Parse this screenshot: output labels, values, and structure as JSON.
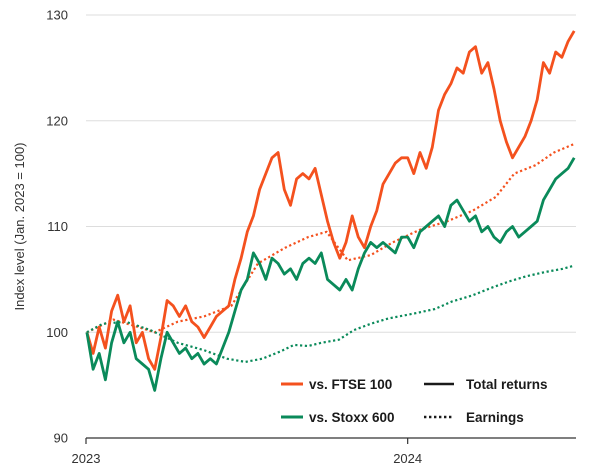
{
  "chart_data": {
    "type": "line",
    "title": "",
    "ylabel": "Index level (Jan. 2023 = 100)",
    "xlabel": "",
    "ylim": [
      90,
      130
    ],
    "yticks": [
      90,
      100,
      110,
      120,
      130
    ],
    "xlim": [
      "2023-01-01",
      "2024-07-10"
    ],
    "xticks": [
      {
        "date": "2023-01-01",
        "label": "2023"
      },
      {
        "date": "2024-01-01",
        "label": "2024"
      }
    ],
    "grid": "horizontal",
    "colors": {
      "ftse": "#f4511e",
      "stoxx": "#0a8a5a",
      "axis": "#333333",
      "grid": "#dddddd"
    },
    "legend": {
      "placement": "bottom-right",
      "series_entries": [
        {
          "label": "vs. FTSE 100",
          "color": "#f4511e"
        },
        {
          "label": "vs. Stoxx 600",
          "color": "#0a8a5a"
        }
      ],
      "style_entries": [
        {
          "label": "Total returns",
          "style": "solid"
        },
        {
          "label": "Earnings",
          "style": "dotted"
        }
      ]
    },
    "series": [
      {
        "key": "ftse_total",
        "color": "#f4511e",
        "style": "solid",
        "points": [
          [
            "2023-01-02",
            100.0
          ],
          [
            "2023-01-09",
            98.0
          ],
          [
            "2023-01-16",
            100.5
          ],
          [
            "2023-01-23",
            98.5
          ],
          [
            "2023-01-30",
            102.0
          ],
          [
            "2023-02-06",
            103.5
          ],
          [
            "2023-02-13",
            101.0
          ],
          [
            "2023-02-20",
            102.5
          ],
          [
            "2023-02-27",
            99.0
          ],
          [
            "2023-03-06",
            100.0
          ],
          [
            "2023-03-13",
            97.5
          ],
          [
            "2023-03-20",
            96.5
          ],
          [
            "2023-03-27",
            99.5
          ],
          [
            "2023-04-03",
            103.0
          ],
          [
            "2023-04-10",
            102.5
          ],
          [
            "2023-04-17",
            101.5
          ],
          [
            "2023-04-24",
            102.5
          ],
          [
            "2023-05-01",
            101.0
          ],
          [
            "2023-05-08",
            100.5
          ],
          [
            "2023-05-15",
            99.5
          ],
          [
            "2023-05-22",
            100.5
          ],
          [
            "2023-05-29",
            101.5
          ],
          [
            "2023-06-05",
            102.0
          ],
          [
            "2023-06-12",
            102.5
          ],
          [
            "2023-06-19",
            105.0
          ],
          [
            "2023-06-26",
            107.0
          ],
          [
            "2023-07-03",
            109.5
          ],
          [
            "2023-07-10",
            111.0
          ],
          [
            "2023-07-17",
            113.5
          ],
          [
            "2023-07-24",
            115.0
          ],
          [
            "2023-07-31",
            116.5
          ],
          [
            "2023-08-07",
            117.0
          ],
          [
            "2023-08-14",
            113.5
          ],
          [
            "2023-08-21",
            112.0
          ],
          [
            "2023-08-28",
            114.5
          ],
          [
            "2023-09-04",
            115.0
          ],
          [
            "2023-09-11",
            114.5
          ],
          [
            "2023-09-18",
            115.5
          ],
          [
            "2023-09-25",
            113.0
          ],
          [
            "2023-10-02",
            110.5
          ],
          [
            "2023-10-09",
            108.5
          ],
          [
            "2023-10-16",
            107.0
          ],
          [
            "2023-10-23",
            108.5
          ],
          [
            "2023-10-30",
            111.0
          ],
          [
            "2023-11-06",
            109.0
          ],
          [
            "2023-11-13",
            108.0
          ],
          [
            "2023-11-20",
            110.0
          ],
          [
            "2023-11-27",
            111.5
          ],
          [
            "2023-12-04",
            114.0
          ],
          [
            "2023-12-11",
            115.0
          ],
          [
            "2023-12-18",
            116.0
          ],
          [
            "2023-12-25",
            116.5
          ],
          [
            "2024-01-01",
            116.5
          ],
          [
            "2024-01-08",
            115.0
          ],
          [
            "2024-01-15",
            117.0
          ],
          [
            "2024-01-22",
            115.5
          ],
          [
            "2024-01-29",
            117.5
          ],
          [
            "2024-02-05",
            121.0
          ],
          [
            "2024-02-12",
            122.5
          ],
          [
            "2024-02-19",
            123.5
          ],
          [
            "2024-02-26",
            125.0
          ],
          [
            "2024-03-04",
            124.5
          ],
          [
            "2024-03-11",
            126.5
          ],
          [
            "2024-03-18",
            127.0
          ],
          [
            "2024-03-25",
            124.5
          ],
          [
            "2024-04-01",
            125.5
          ],
          [
            "2024-04-08",
            123.0
          ],
          [
            "2024-04-15",
            120.0
          ],
          [
            "2024-04-22",
            118.0
          ],
          [
            "2024-04-29",
            116.5
          ],
          [
            "2024-05-06",
            117.5
          ],
          [
            "2024-05-13",
            118.5
          ],
          [
            "2024-05-20",
            120.0
          ],
          [
            "2024-05-27",
            122.0
          ],
          [
            "2024-06-03",
            125.5
          ],
          [
            "2024-06-10",
            124.5
          ],
          [
            "2024-06-17",
            126.5
          ],
          [
            "2024-06-24",
            126.0
          ],
          [
            "2024-07-01",
            127.5
          ],
          [
            "2024-07-08",
            128.5
          ]
        ]
      },
      {
        "key": "ftse_earnings",
        "color": "#f4511e",
        "style": "dotted",
        "points": [
          [
            "2023-01-02",
            100.0
          ],
          [
            "2023-02-01",
            101.2
          ],
          [
            "2023-03-01",
            100.5
          ],
          [
            "2023-03-20",
            100.0
          ],
          [
            "2023-04-15",
            101.0
          ],
          [
            "2023-05-15",
            101.5
          ],
          [
            "2023-06-15",
            102.5
          ],
          [
            "2023-07-15",
            106.5
          ],
          [
            "2023-08-15",
            108.0
          ],
          [
            "2023-09-10",
            109.0
          ],
          [
            "2023-10-01",
            109.5
          ],
          [
            "2023-10-25",
            106.8
          ],
          [
            "2023-11-20",
            107.3
          ],
          [
            "2023-12-15",
            108.5
          ],
          [
            "2024-01-15",
            109.7
          ],
          [
            "2024-02-15",
            110.5
          ],
          [
            "2024-03-15",
            111.5
          ],
          [
            "2024-04-10",
            112.8
          ],
          [
            "2024-05-01",
            115.0
          ],
          [
            "2024-05-25",
            115.8
          ],
          [
            "2024-06-15",
            117.0
          ],
          [
            "2024-07-08",
            117.8
          ]
        ]
      },
      {
        "key": "stoxx_total",
        "color": "#0a8a5a",
        "style": "solid",
        "points": [
          [
            "2023-01-02",
            100.0
          ],
          [
            "2023-01-09",
            96.5
          ],
          [
            "2023-01-16",
            98.0
          ],
          [
            "2023-01-23",
            95.5
          ],
          [
            "2023-01-30",
            99.0
          ],
          [
            "2023-02-06",
            101.0
          ],
          [
            "2023-02-13",
            99.0
          ],
          [
            "2023-02-20",
            100.0
          ],
          [
            "2023-02-27",
            97.5
          ],
          [
            "2023-03-06",
            97.0
          ],
          [
            "2023-03-13",
            96.5
          ],
          [
            "2023-03-20",
            94.5
          ],
          [
            "2023-03-27",
            97.5
          ],
          [
            "2023-04-03",
            100.0
          ],
          [
            "2023-04-10",
            99.0
          ],
          [
            "2023-04-17",
            98.0
          ],
          [
            "2023-04-24",
            98.5
          ],
          [
            "2023-05-01",
            97.5
          ],
          [
            "2023-05-08",
            98.0
          ],
          [
            "2023-05-15",
            97.0
          ],
          [
            "2023-05-22",
            97.5
          ],
          [
            "2023-05-29",
            97.0
          ],
          [
            "2023-06-05",
            98.5
          ],
          [
            "2023-06-12",
            100.0
          ],
          [
            "2023-06-19",
            102.0
          ],
          [
            "2023-06-26",
            104.0
          ],
          [
            "2023-07-03",
            105.0
          ],
          [
            "2023-07-10",
            107.5
          ],
          [
            "2023-07-17",
            106.5
          ],
          [
            "2023-07-24",
            105.0
          ],
          [
            "2023-07-31",
            107.0
          ],
          [
            "2023-08-07",
            106.5
          ],
          [
            "2023-08-14",
            105.5
          ],
          [
            "2023-08-21",
            106.0
          ],
          [
            "2023-08-28",
            105.0
          ],
          [
            "2023-09-04",
            106.5
          ],
          [
            "2023-09-11",
            107.0
          ],
          [
            "2023-09-18",
            106.5
          ],
          [
            "2023-09-25",
            107.5
          ],
          [
            "2023-10-02",
            105.0
          ],
          [
            "2023-10-09",
            104.5
          ],
          [
            "2023-10-16",
            104.0
          ],
          [
            "2023-10-23",
            105.0
          ],
          [
            "2023-10-30",
            104.0
          ],
          [
            "2023-11-06",
            106.0
          ],
          [
            "2023-11-13",
            107.5
          ],
          [
            "2023-11-20",
            108.5
          ],
          [
            "2023-11-27",
            108.0
          ],
          [
            "2023-12-04",
            108.5
          ],
          [
            "2023-12-11",
            108.0
          ],
          [
            "2023-12-18",
            107.5
          ],
          [
            "2023-12-25",
            109.0
          ],
          [
            "2024-01-01",
            109.0
          ],
          [
            "2024-01-08",
            108.0
          ],
          [
            "2024-01-15",
            109.5
          ],
          [
            "2024-01-22",
            110.0
          ],
          [
            "2024-01-29",
            110.5
          ],
          [
            "2024-02-05",
            111.0
          ],
          [
            "2024-02-12",
            110.0
          ],
          [
            "2024-02-19",
            112.0
          ],
          [
            "2024-02-26",
            112.5
          ],
          [
            "2024-03-04",
            111.5
          ],
          [
            "2024-03-11",
            110.5
          ],
          [
            "2024-03-18",
            111.0
          ],
          [
            "2024-03-25",
            109.5
          ],
          [
            "2024-04-01",
            110.0
          ],
          [
            "2024-04-08",
            109.0
          ],
          [
            "2024-04-15",
            108.5
          ],
          [
            "2024-04-22",
            109.5
          ],
          [
            "2024-04-29",
            110.0
          ],
          [
            "2024-05-06",
            109.0
          ],
          [
            "2024-05-13",
            109.5
          ],
          [
            "2024-05-20",
            110.0
          ],
          [
            "2024-05-27",
            110.5
          ],
          [
            "2024-06-03",
            112.5
          ],
          [
            "2024-06-10",
            113.5
          ],
          [
            "2024-06-17",
            114.5
          ],
          [
            "2024-06-24",
            115.0
          ],
          [
            "2024-07-01",
            115.5
          ],
          [
            "2024-07-08",
            116.5
          ]
        ]
      },
      {
        "key": "stoxx_earnings",
        "color": "#0a8a5a",
        "style": "dotted",
        "points": [
          [
            "2023-01-02",
            100.0
          ],
          [
            "2023-01-20",
            100.8
          ],
          [
            "2023-02-15",
            101.0
          ],
          [
            "2023-03-15",
            100.2
          ],
          [
            "2023-04-15",
            99.0
          ],
          [
            "2023-05-15",
            98.3
          ],
          [
            "2023-06-10",
            97.5
          ],
          [
            "2023-07-01",
            97.2
          ],
          [
            "2023-07-20",
            97.5
          ],
          [
            "2023-08-10",
            98.2
          ],
          [
            "2023-08-25",
            98.8
          ],
          [
            "2023-09-10",
            98.7
          ],
          [
            "2023-09-25",
            99.0
          ],
          [
            "2023-10-15",
            99.3
          ],
          [
            "2023-11-01",
            100.2
          ],
          [
            "2023-11-20",
            100.8
          ],
          [
            "2023-12-10",
            101.3
          ],
          [
            "2024-01-10",
            101.8
          ],
          [
            "2024-02-01",
            102.2
          ],
          [
            "2024-02-20",
            102.9
          ],
          [
            "2024-03-15",
            103.5
          ],
          [
            "2024-04-05",
            104.2
          ],
          [
            "2024-04-25",
            104.8
          ],
          [
            "2024-05-15",
            105.3
          ],
          [
            "2024-06-05",
            105.7
          ],
          [
            "2024-06-25",
            106.0
          ],
          [
            "2024-07-08",
            106.3
          ]
        ]
      }
    ]
  }
}
